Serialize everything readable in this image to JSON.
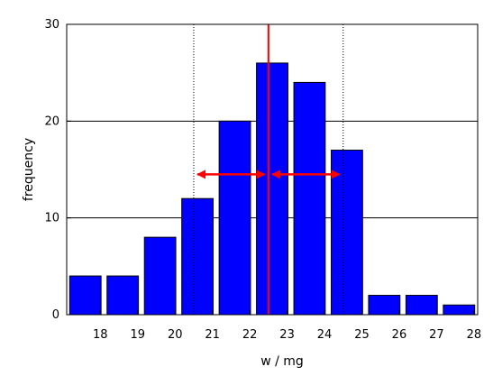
{
  "chart_data": {
    "type": "bar",
    "xlabel": "w / mg",
    "ylabel": "frequency",
    "ylim": [
      0,
      30
    ],
    "xlim": [
      17.1,
      28.1
    ],
    "yticks": [
      0,
      10,
      20,
      30
    ],
    "xticks": [
      18,
      19,
      20,
      21,
      22,
      23,
      24,
      25,
      26,
      27,
      28
    ],
    "grid": "horizontal",
    "bin_centers": [
      17.6,
      18.6,
      19.6,
      20.6,
      21.6,
      22.6,
      23.6,
      24.6,
      25.6,
      26.6,
      27.6
    ],
    "values": [
      4,
      4,
      8,
      12,
      20,
      26,
      24,
      17,
      2,
      2,
      1
    ],
    "mean": 22.5,
    "std_range": [
      20.5,
      24.5
    ],
    "arrow_y": 14.5,
    "colors": {
      "bar_fill": "#0000ff",
      "bar_stroke": "#000000",
      "mean_line": "#ff0000",
      "arrow": "#ff0000",
      "grid": "#000000"
    }
  }
}
